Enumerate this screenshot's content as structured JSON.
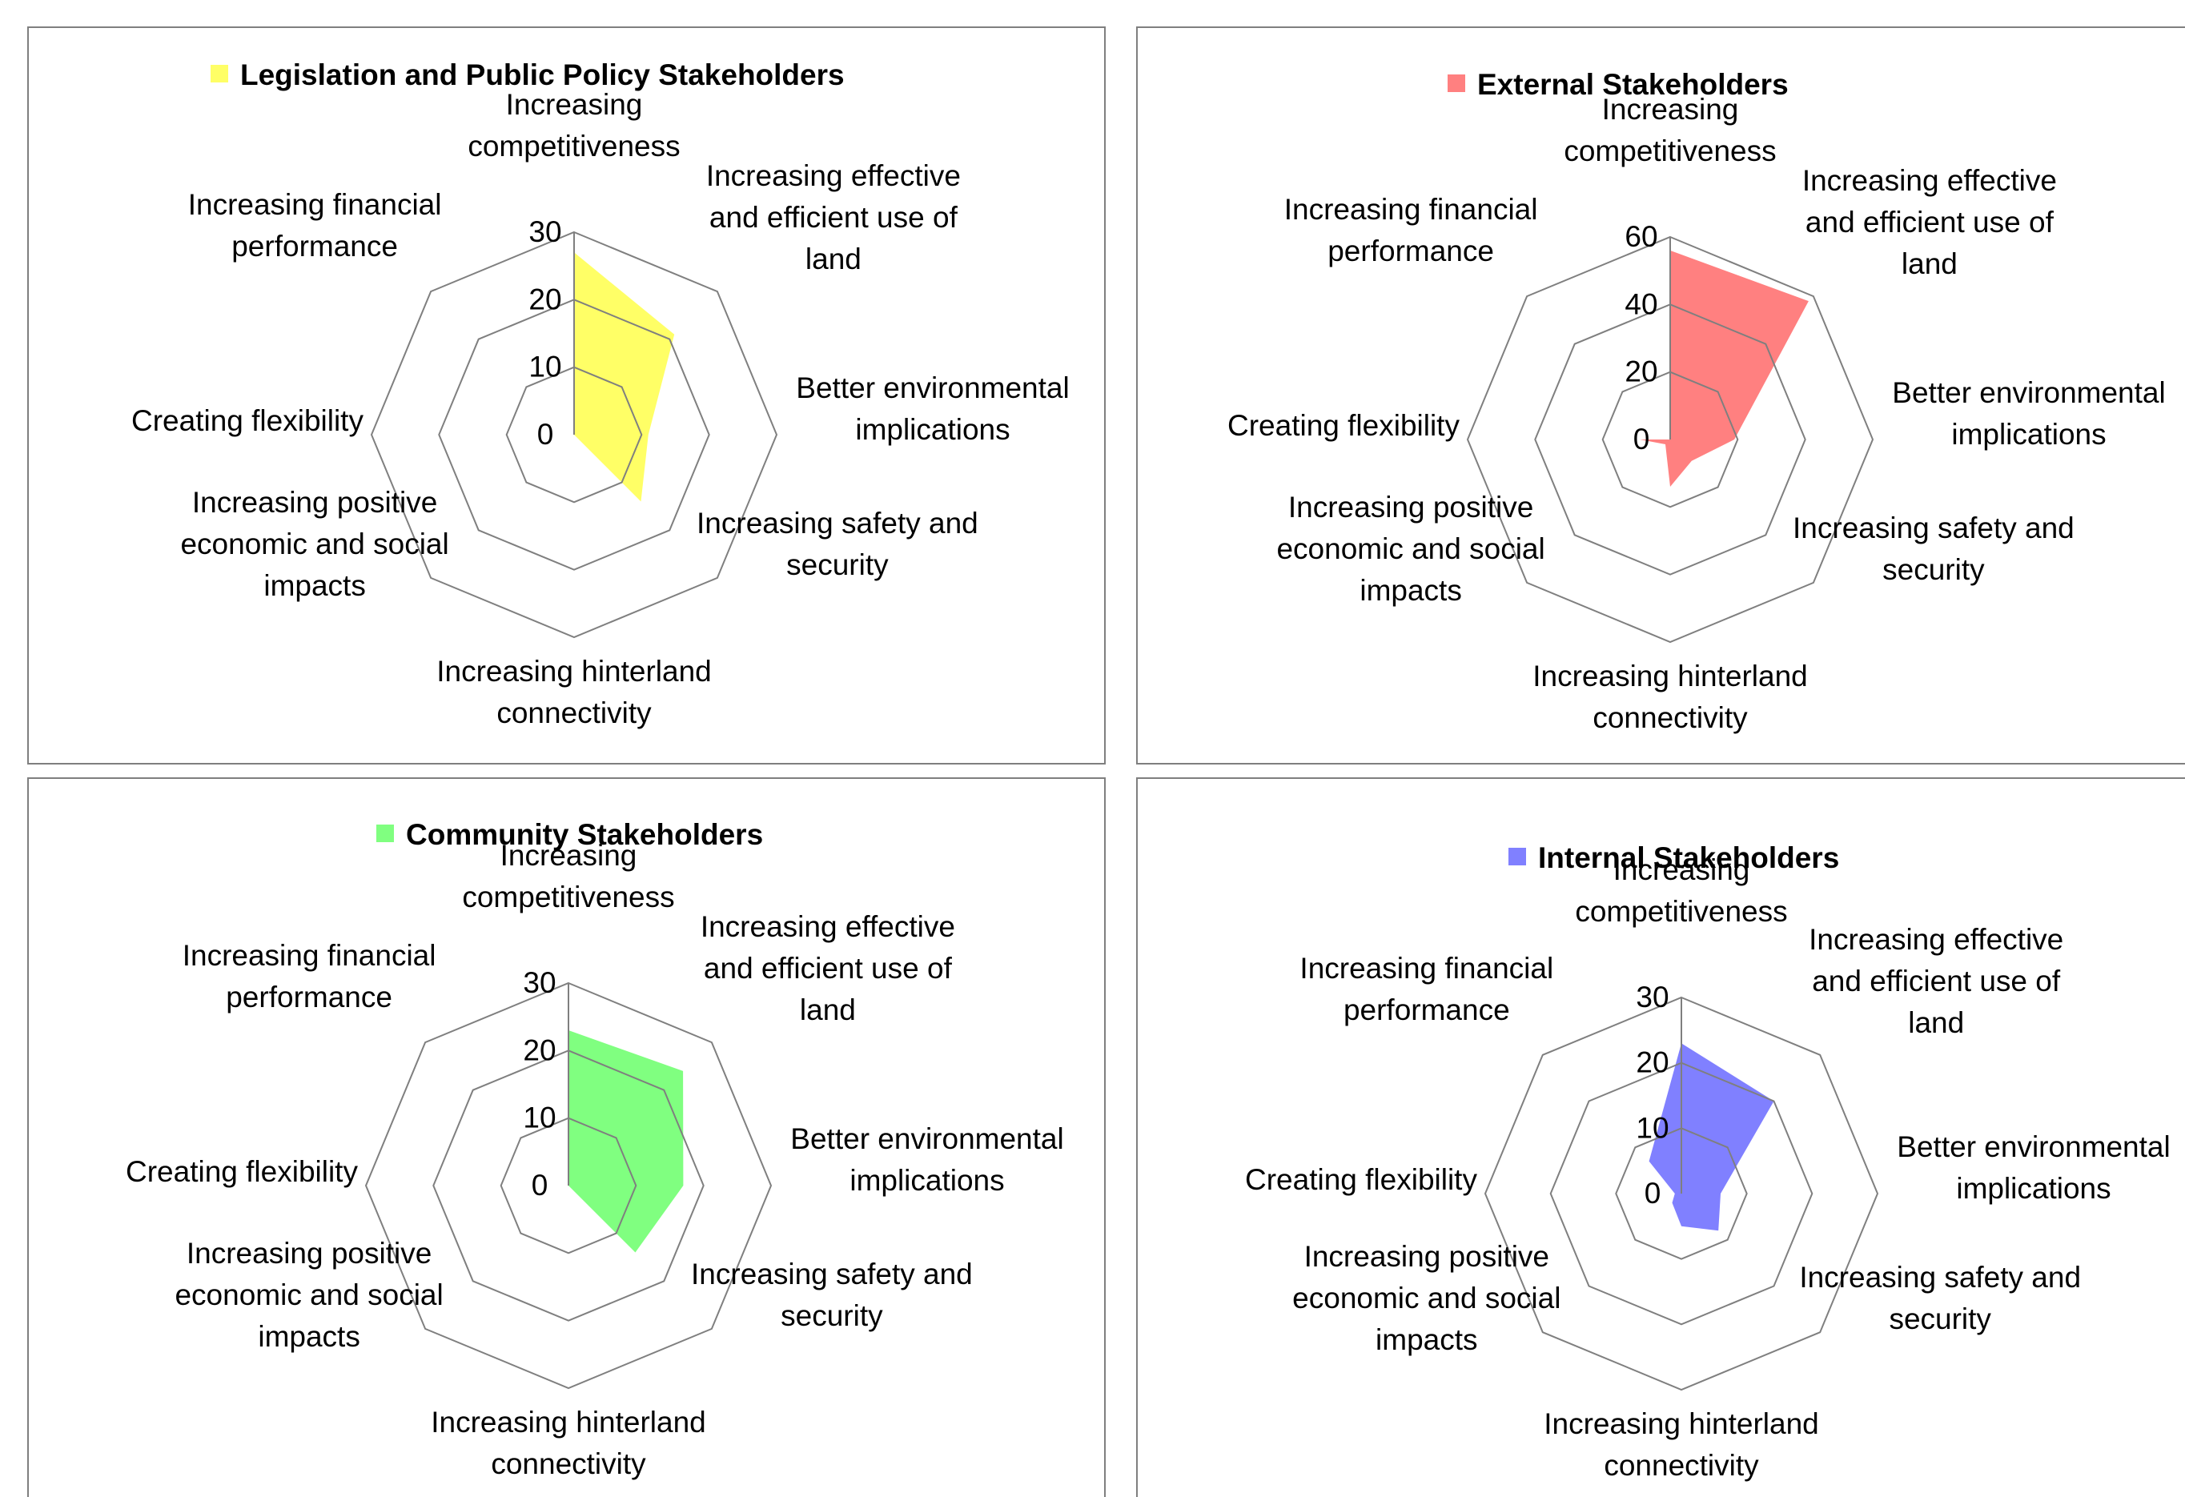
{
  "axes": [
    "Increasing competitiveness",
    "Increasing effective and efficient use of land",
    "Better environmental implications",
    "Increasing safety and security",
    "Increasing hinterland connectivity",
    "Increasing positive economic and social impacts",
    "Creating flexibility",
    "Increasing financial performance"
  ],
  "chart_data": [
    {
      "type": "radar",
      "title": "",
      "legend": "Legislation and Public Policy Stakeholders",
      "legend_position": "top",
      "color": "#FFFF66",
      "rmax": 30,
      "ticks": [
        0,
        10,
        20,
        30
      ],
      "grid": true,
      "categories": [
        "Increasing competitiveness",
        "Increasing effective and efficient use of land",
        "Better environmental implications",
        "Increasing safety and security",
        "Increasing hinterland connectivity",
        "Increasing positive economic and social impacts",
        "Creating flexibility",
        "Increasing financial performance"
      ],
      "series": [
        {
          "name": "Legislation and Public Policy Stakeholders",
          "values": [
            27,
            21,
            11,
            14,
            0,
            0,
            3,
            0
          ]
        }
      ]
    },
    {
      "type": "radar",
      "title": "",
      "legend": "External Stakeholders",
      "legend_position": "top",
      "color": "#FF8080",
      "rmax": 60,
      "ticks": [
        0,
        20,
        40,
        60
      ],
      "grid": true,
      "categories": [
        "Increasing competitiveness",
        "Increasing effective and efficient use of land",
        "Better environmental implications",
        "Increasing safety and security",
        "Increasing hinterland connectivity",
        "Increasing positive economic and social impacts",
        "Creating flexibility",
        "Increasing financial performance"
      ],
      "series": [
        {
          "name": "External Stakeholders",
          "values": [
            56,
            58,
            19,
            9,
            14,
            2,
            9,
            0
          ]
        }
      ]
    },
    {
      "type": "radar",
      "title": "",
      "legend": "Community Stakeholders",
      "legend_position": "top",
      "color": "#80FF80",
      "rmax": 30,
      "ticks": [
        0,
        10,
        20,
        30
      ],
      "grid": true,
      "categories": [
        "Increasing competitiveness",
        "Increasing effective and efficient use of land",
        "Better environmental implications",
        "Increasing safety and security",
        "Increasing hinterland connectivity",
        "Increasing positive economic and social impacts",
        "Creating flexibility",
        "Increasing financial performance"
      ],
      "series": [
        {
          "name": "Community Stakeholders",
          "values": [
            23,
            24,
            17,
            14,
            0,
            0,
            4,
            0
          ]
        }
      ]
    },
    {
      "type": "radar",
      "title": "",
      "legend": "Internal Stakeholders",
      "legend_position": "top",
      "color": "#8080FF",
      "rmax": 30,
      "ticks": [
        0,
        10,
        20,
        30
      ],
      "grid": true,
      "categories": [
        "Increasing competitiveness",
        "Increasing effective and efficient use of land",
        "Better environmental implications",
        "Increasing safety and security",
        "Increasing hinterland connectivity",
        "Increasing positive economic and social impacts",
        "Creating flexibility",
        "Increasing financial performance"
      ],
      "series": [
        {
          "name": "Internal Stakeholders",
          "values": [
            23,
            20,
            6,
            8,
            5,
            2,
            1,
            7
          ]
        }
      ]
    }
  ]
}
